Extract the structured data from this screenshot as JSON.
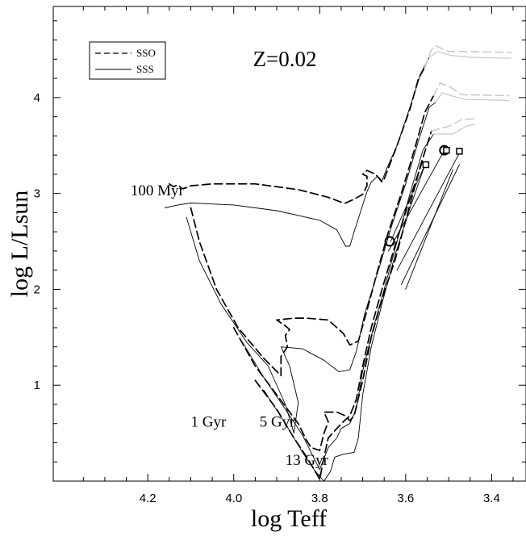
{
  "chart_data": {
    "type": "line",
    "title": "Z=0.02",
    "xlabel": "log Teff",
    "ylabel": "log L/Lsun",
    "xlim": [
      4.42,
      3.32
    ],
    "ylim": [
      0.0,
      4.95
    ],
    "x_axis_reversed": true,
    "x_ticks": [
      {
        "value": 4.2,
        "label": "4.2"
      },
      {
        "value": 4.0,
        "label": "4.0"
      },
      {
        "value": 3.8,
        "label": "3.8"
      },
      {
        "value": 3.6,
        "label": "3.6"
      },
      {
        "value": 3.4,
        "label": "3.4"
      }
    ],
    "y_ticks": [
      {
        "value": 1,
        "label": "1"
      },
      {
        "value": 2,
        "label": "2"
      },
      {
        "value": 3,
        "label": "3"
      },
      {
        "value": 4,
        "label": "4"
      }
    ],
    "legend": {
      "position": "top-left",
      "entries": [
        {
          "label": "SSO",
          "style": "dashed"
        },
        {
          "label": "SSS",
          "style": "solid"
        }
      ]
    },
    "annotations": [
      {
        "text": "100 Myr",
        "x": 4.24,
        "y": 2.98
      },
      {
        "text": "1 Gyr",
        "x": 4.1,
        "y": 0.57
      },
      {
        "text": "5 Gyr",
        "x": 3.94,
        "y": 0.57
      },
      {
        "text": "13 Gyr",
        "x": 3.88,
        "y": 0.17
      }
    ],
    "colors": {
      "dashed_series": "#000000",
      "solid_series": "#000000",
      "extension_series": "#c8c8c8"
    },
    "series": [
      {
        "name": "SSO",
        "age": "100 Myr",
        "style": "dashed",
        "points": [
          [
            4.15,
            3.1
          ],
          [
            4.14,
            3.07
          ],
          [
            4.13,
            3.09
          ],
          [
            4.12,
            3.05
          ],
          [
            4.11,
            3.06
          ],
          [
            4.1,
            3.08
          ],
          [
            4.05,
            3.1
          ],
          [
            3.95,
            3.1
          ],
          [
            3.85,
            3.04
          ],
          [
            3.78,
            2.96
          ],
          [
            3.745,
            2.9
          ],
          [
            3.74,
            2.9
          ],
          [
            3.72,
            2.94
          ],
          [
            3.7,
            2.99
          ],
          [
            3.69,
            3.08
          ],
          [
            3.69,
            3.18
          ],
          [
            3.7,
            3.2
          ],
          [
            3.69,
            3.24
          ],
          [
            3.67,
            3.2
          ],
          [
            3.655,
            3.12
          ],
          [
            3.65,
            3.15
          ],
          [
            3.62,
            3.5
          ],
          [
            3.59,
            3.88
          ],
          [
            3.57,
            4.2
          ],
          [
            3.555,
            4.32
          ]
        ]
      },
      {
        "name": "SSS",
        "age": "100 Myr",
        "style": "solid",
        "points": [
          [
            4.16,
            2.85
          ],
          [
            4.13,
            2.88
          ],
          [
            4.1,
            2.9
          ],
          [
            4.0,
            2.88
          ],
          [
            3.9,
            2.82
          ],
          [
            3.8,
            2.72
          ],
          [
            3.76,
            2.62
          ],
          [
            3.74,
            2.45
          ],
          [
            3.73,
            2.45
          ],
          [
            3.72,
            2.6
          ],
          [
            3.7,
            2.88
          ],
          [
            3.69,
            3.02
          ],
          [
            3.68,
            3.12
          ],
          [
            3.665,
            3.18
          ],
          [
            3.655,
            3.13
          ],
          [
            3.645,
            3.25
          ],
          [
            3.62,
            3.5
          ],
          [
            3.59,
            3.9
          ],
          [
            3.565,
            4.25
          ],
          [
            3.545,
            4.42
          ]
        ]
      },
      {
        "name": "SSO",
        "age": "1 Gyr",
        "style": "dashed",
        "points": [
          [
            4.1,
            2.85
          ],
          [
            4.08,
            2.5
          ],
          [
            4.04,
            2.0
          ],
          [
            3.99,
            1.6
          ],
          [
            3.93,
            1.28
          ],
          [
            3.89,
            1.1
          ],
          [
            3.89,
            1.3
          ],
          [
            3.875,
            1.4
          ],
          [
            3.88,
            1.52
          ],
          [
            3.87,
            1.58
          ],
          [
            3.88,
            1.62
          ],
          [
            3.9,
            1.68
          ],
          [
            3.86,
            1.7
          ],
          [
            3.83,
            1.7
          ],
          [
            3.78,
            1.68
          ],
          [
            3.745,
            1.54
          ],
          [
            3.73,
            1.42
          ],
          [
            3.71,
            1.46
          ],
          [
            3.69,
            1.78
          ],
          [
            3.665,
            2.2
          ],
          [
            3.64,
            2.6
          ],
          [
            3.61,
            3.0
          ],
          [
            3.58,
            3.45
          ],
          [
            3.555,
            3.85
          ],
          [
            3.535,
            4.02
          ]
        ]
      },
      {
        "name": "SSS",
        "age": "1 Gyr",
        "style": "solid",
        "points": [
          [
            4.11,
            2.75
          ],
          [
            4.08,
            2.3
          ],
          [
            4.03,
            1.85
          ],
          [
            3.97,
            1.45
          ],
          [
            3.92,
            1.2
          ],
          [
            3.88,
            0.8
          ],
          [
            3.86,
            0.5
          ],
          [
            3.85,
            0.82
          ],
          [
            3.87,
            1.2
          ],
          [
            3.89,
            1.4
          ],
          [
            3.84,
            1.38
          ],
          [
            3.79,
            1.26
          ],
          [
            3.755,
            1.14
          ],
          [
            3.73,
            1.16
          ],
          [
            3.715,
            1.35
          ],
          [
            3.695,
            1.75
          ],
          [
            3.66,
            2.25
          ],
          [
            3.63,
            2.7
          ],
          [
            3.6,
            3.1
          ],
          [
            3.57,
            3.55
          ],
          [
            3.545,
            3.9
          ],
          [
            3.53,
            3.95
          ]
        ]
      },
      {
        "name": "SSO",
        "age": "5 Gyr",
        "style": "dashed",
        "points": [
          [
            4.0,
            1.6
          ],
          [
            3.95,
            1.2
          ],
          [
            3.9,
            0.9
          ],
          [
            3.85,
            0.6
          ],
          [
            3.83,
            0.42
          ],
          [
            3.82,
            0.35
          ],
          [
            3.8,
            0.32
          ],
          [
            3.79,
            0.5
          ],
          [
            3.78,
            0.62
          ],
          [
            3.79,
            0.72
          ],
          [
            3.76,
            0.72
          ],
          [
            3.74,
            0.68
          ],
          [
            3.73,
            0.63
          ],
          [
            3.72,
            0.68
          ],
          [
            3.7,
            1.05
          ],
          [
            3.68,
            1.5
          ],
          [
            3.655,
            1.9
          ],
          [
            3.625,
            2.3
          ],
          [
            3.595,
            2.8
          ],
          [
            3.565,
            3.3
          ],
          [
            3.54,
            3.65
          ]
        ]
      },
      {
        "name": "SSS",
        "age": "5 Gyr",
        "style": "solid",
        "points": [
          [
            3.98,
            1.45
          ],
          [
            3.93,
            1.08
          ],
          [
            3.88,
            0.75
          ],
          [
            3.84,
            0.48
          ],
          [
            3.82,
            0.3
          ],
          [
            3.8,
            0.12
          ],
          [
            3.78,
            0.35
          ],
          [
            3.76,
            0.45
          ],
          [
            3.75,
            0.55
          ],
          [
            3.73,
            0.6
          ],
          [
            3.715,
            0.75
          ],
          [
            3.7,
            1.15
          ],
          [
            3.675,
            1.6
          ],
          [
            3.65,
            2.0
          ],
          [
            3.62,
            2.5
          ],
          [
            3.59,
            3.0
          ],
          [
            3.56,
            3.45
          ],
          [
            3.535,
            3.62
          ]
        ]
      },
      {
        "name": "SSO",
        "age": "13 Gyr",
        "style": "dashed",
        "points": [
          [
            3.95,
            1.05
          ],
          [
            3.9,
            0.75
          ],
          [
            3.86,
            0.45
          ],
          [
            3.83,
            0.25
          ],
          [
            3.8,
            0.02
          ],
          [
            3.79,
            0.25
          ],
          [
            3.78,
            0.45
          ],
          [
            3.76,
            0.55
          ],
          [
            3.745,
            0.62
          ],
          [
            3.73,
            0.68
          ],
          [
            3.715,
            0.85
          ],
          [
            3.7,
            1.2
          ],
          [
            3.68,
            1.6
          ],
          [
            3.655,
            2.0
          ],
          [
            3.625,
            2.45
          ],
          [
            3.59,
            2.95
          ],
          [
            3.56,
            3.35
          ]
        ]
      },
      {
        "name": "SSS",
        "age": "13 Gyr",
        "style": "solid",
        "points": [
          [
            3.93,
            0.95
          ],
          [
            3.88,
            0.6
          ],
          [
            3.84,
            0.3
          ],
          [
            3.81,
            0.1
          ],
          [
            3.79,
            0.0
          ],
          [
            3.775,
            0.1
          ],
          [
            3.765,
            0.25
          ],
          [
            3.745,
            0.28
          ],
          [
            3.72,
            0.3
          ],
          [
            3.71,
            0.45
          ],
          [
            3.7,
            0.9
          ],
          [
            3.68,
            1.4
          ],
          [
            3.655,
            1.85
          ],
          [
            3.625,
            2.35
          ],
          [
            3.59,
            2.85
          ],
          [
            3.555,
            3.3
          ]
        ]
      },
      {
        "name": "",
        "age": "100 Myr",
        "style": "extension-dashed",
        "points": [
          [
            3.555,
            4.32
          ],
          [
            3.54,
            4.5
          ],
          [
            3.53,
            4.54
          ],
          [
            3.5,
            4.48
          ],
          [
            3.46,
            4.48
          ],
          [
            3.355,
            4.47
          ]
        ]
      },
      {
        "name": "",
        "age": "100 Myr",
        "style": "extension-solid",
        "points": [
          [
            3.545,
            4.42
          ],
          [
            3.525,
            4.48
          ],
          [
            3.495,
            4.44
          ],
          [
            3.45,
            4.42
          ],
          [
            3.355,
            4.41
          ]
        ]
      },
      {
        "name": "",
        "age": "1 Gyr",
        "style": "extension-dashed",
        "points": [
          [
            3.535,
            4.02
          ],
          [
            3.52,
            4.15
          ],
          [
            3.5,
            4.12
          ],
          [
            3.47,
            4.03
          ],
          [
            3.36,
            4.02
          ]
        ]
      },
      {
        "name": "",
        "age": "1 Gyr",
        "style": "extension-solid",
        "points": [
          [
            3.53,
            3.95
          ],
          [
            3.515,
            4.05
          ],
          [
            3.495,
            4.02
          ],
          [
            3.46,
            3.98
          ],
          [
            3.36,
            3.97
          ]
        ]
      },
      {
        "name": "",
        "age": "5 Gyr",
        "style": "extension-dashed",
        "points": [
          [
            3.54,
            3.65
          ],
          [
            3.5,
            3.7
          ],
          [
            3.47,
            3.77
          ],
          [
            3.44,
            3.78
          ]
        ]
      },
      {
        "name": "",
        "age": "5 Gyr",
        "style": "extension-solid",
        "points": [
          [
            3.535,
            3.62
          ],
          [
            3.49,
            3.62
          ],
          [
            3.46,
            3.7
          ],
          [
            3.44,
            3.72
          ]
        ]
      },
      {
        "name": "",
        "age": "markers-fan",
        "style": "solid",
        "points": [
          [
            3.635,
            2.5
          ],
          [
            3.555,
            3.3
          ]
        ]
      },
      {
        "name": "",
        "age": "markers-fan",
        "style": "solid",
        "points": [
          [
            3.64,
            2.4
          ],
          [
            3.51,
            3.45
          ]
        ]
      },
      {
        "name": "",
        "age": "markers-fan",
        "style": "solid",
        "points": [
          [
            3.62,
            2.2
          ],
          [
            3.475,
            3.42
          ]
        ]
      },
      {
        "name": "",
        "age": "markers-fan",
        "style": "solid",
        "points": [
          [
            3.61,
            2.05
          ],
          [
            3.475,
            3.3
          ]
        ]
      },
      {
        "name": "",
        "age": "markers-fan",
        "style": "solid",
        "points": [
          [
            3.6,
            2.0
          ],
          [
            3.49,
            3.25
          ]
        ]
      }
    ],
    "markers": [
      {
        "shape": "circle",
        "x": 3.637,
        "y": 2.5
      },
      {
        "shape": "circle",
        "x": 3.51,
        "y": 3.45
      },
      {
        "shape": "square",
        "x": 3.553,
        "y": 3.3
      },
      {
        "shape": "square",
        "x": 3.505,
        "y": 3.45
      },
      {
        "shape": "square",
        "x": 3.475,
        "y": 3.44
      }
    ]
  }
}
